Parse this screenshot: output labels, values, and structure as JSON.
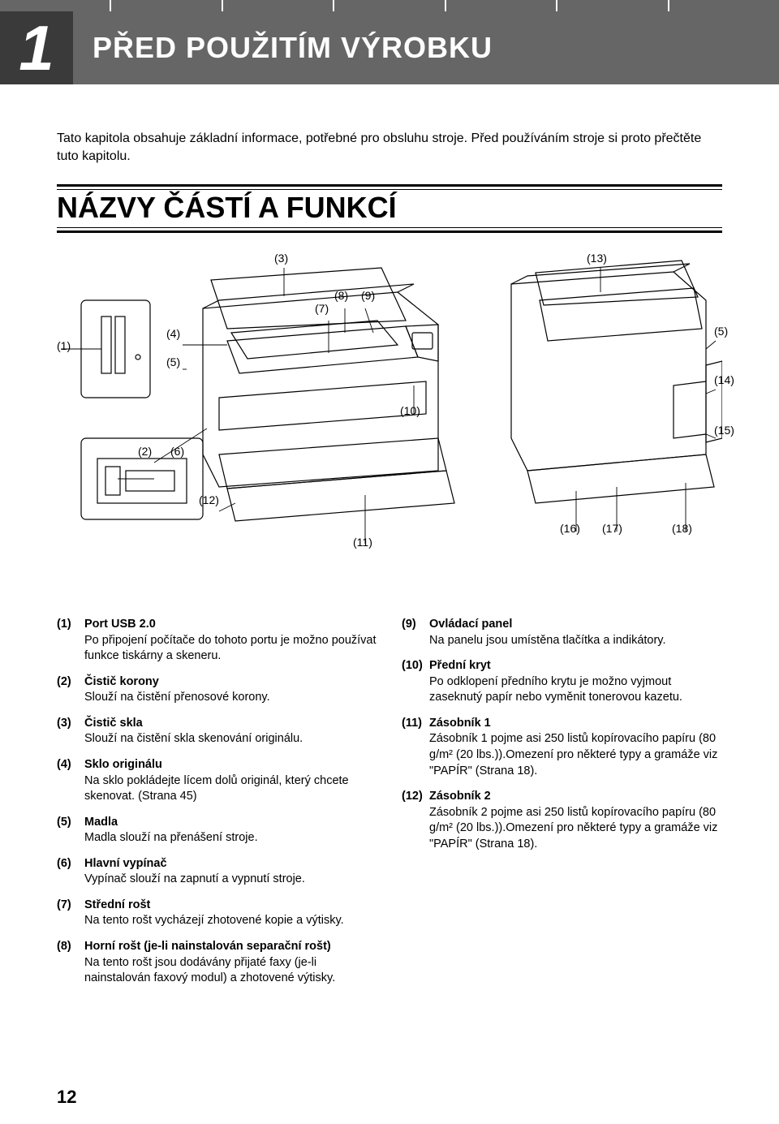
{
  "chapter": {
    "number": "1",
    "title": "PŘED POUŽITÍM VÝROBKU"
  },
  "intro": "Tato kapitola obsahuje základní informace, potřebné pro obsluhu stroje. Před používáním stroje si proto přečtěte tuto kapitolu.",
  "section_heading": "NÁZVY ČÁSTÍ A FUNKCÍ",
  "callouts": {
    "c1": "(1)",
    "c2": "(2)",
    "c3": "(3)",
    "c4": "(4)",
    "c5": "(5)",
    "c5b": "(5)",
    "c6": "(6)",
    "c7": "(7)",
    "c8": "(8)",
    "c9": "(9)",
    "c10": "(10)",
    "c11": "(11)",
    "c12": "(12)",
    "c13": "(13)",
    "c14": "(14)",
    "c15": "(15)",
    "c16": "(16)",
    "c17": "(17)",
    "c18": "(18)"
  },
  "left_items": [
    {
      "num": "(1)",
      "title": "Port USB 2.0",
      "desc": "Po připojení počítače do tohoto portu je možno používat funkce tiskárny a skeneru."
    },
    {
      "num": "(2)",
      "title": "Čistič korony",
      "desc": "Slouží na čistění přenosové korony."
    },
    {
      "num": "(3)",
      "title": "Čistič skla",
      "desc": "Slouží na čistění skla skenování originálu."
    },
    {
      "num": "(4)",
      "title": "Sklo originálu",
      "desc": "Na sklo pokládejte lícem dolů originál, který chcete skenovat. (Strana 45)"
    },
    {
      "num": "(5)",
      "title": "Madla",
      "desc": "Madla slouží na přenášení stroje."
    },
    {
      "num": "(6)",
      "title": "Hlavní vypínač",
      "desc": "Vypínač slouží na zapnutí a vypnutí stroje."
    },
    {
      "num": "(7)",
      "title": "Střední rošt",
      "desc": "Na tento rošt vycházejí zhotovené kopie a výtisky."
    },
    {
      "num": "(8)",
      "title": "Horní rošt (je-li nainstalován separační rošt)",
      "desc": "Na tento rošt jsou dodávány přijaté faxy (je-li nainstalován faxový modul) a zhotovené výtisky."
    }
  ],
  "right_items": [
    {
      "num": "(9)",
      "title": "Ovládací panel",
      "desc": "Na panelu jsou umístěna tlačítka a indikátory."
    },
    {
      "num": "(10)",
      "title": "Přední kryt",
      "desc": "Po odklopení předního krytu je možno vyjmout zaseknutý papír nebo vyměnit tonerovou kazetu."
    },
    {
      "num": "(11)",
      "title": "Zásobník 1",
      "desc": "Zásobník 1 pojme asi 250 listů kopírovacího papíru (80 g/m² (20 lbs.)).Omezení pro některé typy a gramáže viz \"PAPÍR\" (Strana 18)."
    },
    {
      "num": "(12)",
      "title": "Zásobník 2",
      "desc": "Zásobník 2 pojme asi 250 listů kopírovacího papíru (80 g/m² (20 lbs.)).Omezení pro některé typy a gramáže viz \"PAPÍR\" (Strana 18)."
    }
  ],
  "page_number": "12",
  "colors": {
    "header_dark": "#3a3a3a",
    "header_mid": "#666666",
    "text": "#000000",
    "background": "#ffffff"
  }
}
